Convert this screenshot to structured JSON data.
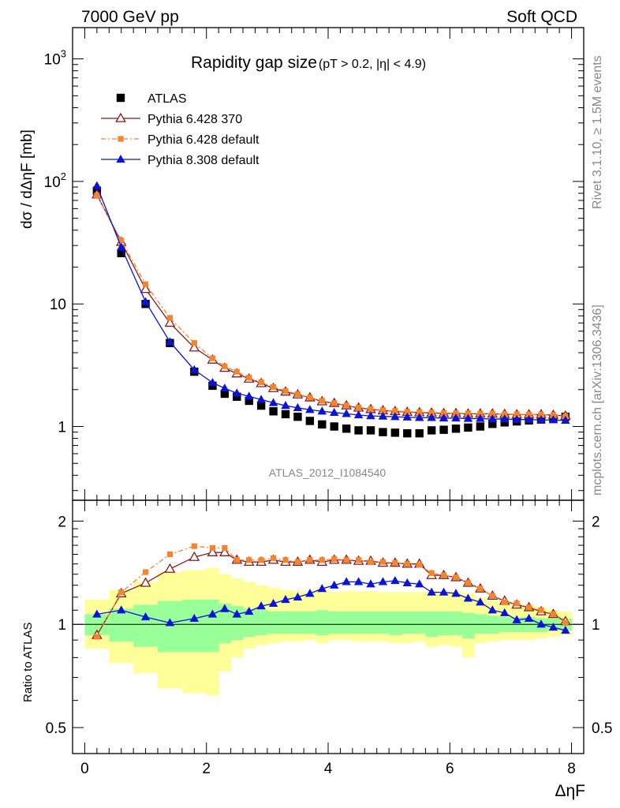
{
  "header": {
    "left": "7000 GeV pp",
    "right": "Soft QCD"
  },
  "side": {
    "rivet": "Rivet 3.1.10, ≥ 1.5M events",
    "mcplots": "mcplots.cern.ch [arXiv:1306.3436]"
  },
  "chart_data": [
    {
      "type": "scatter",
      "title_main": "Rapidity gap size",
      "title_sub": "(pT > 0.2, |η| < 4.9)",
      "ylabel": "dσ / dΔηF [mb]",
      "watermark": "ATLAS_2012_I1084540",
      "yscale": "log",
      "ylim": [
        0.25,
        1800
      ],
      "xlim": [
        -0.2,
        8.2
      ],
      "ytick_labels": [
        "1",
        "10",
        "10²",
        "10³"
      ],
      "series": [
        {
          "name": "ATLAS",
          "color": "#000000",
          "marker": "square-filled",
          "x": [
            0.2,
            0.6,
            1.0,
            1.4,
            1.8,
            2.1,
            2.3,
            2.5,
            2.7,
            2.9,
            3.1,
            3.3,
            3.5,
            3.7,
            3.9,
            4.1,
            4.3,
            4.5,
            4.7,
            4.9,
            5.1,
            5.3,
            5.5,
            5.7,
            5.9,
            6.1,
            6.3,
            6.5,
            6.7,
            6.9,
            7.1,
            7.3,
            7.5,
            7.7,
            7.9
          ],
          "y": [
            84,
            26,
            10,
            4.8,
            2.8,
            2.15,
            1.85,
            1.75,
            1.62,
            1.48,
            1.33,
            1.26,
            1.2,
            1.11,
            1.04,
            1.0,
            0.96,
            0.93,
            0.93,
            0.9,
            0.89,
            0.88,
            0.88,
            0.93,
            0.94,
            0.96,
            0.98,
            1.0,
            1.05,
            1.08,
            1.1,
            1.12,
            1.14,
            1.16,
            1.2
          ]
        },
        {
          "name": "Pythia 6.428 370",
          "color": "#8b1a1a",
          "marker": "triangle-open",
          "x": [
            0.2,
            0.6,
            1.0,
            1.4,
            1.8,
            2.1,
            2.3,
            2.5,
            2.7,
            2.9,
            3.1,
            3.3,
            3.5,
            3.7,
            3.9,
            4.1,
            4.3,
            4.5,
            4.7,
            4.9,
            5.1,
            5.3,
            5.5,
            5.7,
            5.9,
            6.1,
            6.3,
            6.5,
            6.7,
            6.9,
            7.1,
            7.3,
            7.5,
            7.7,
            7.9
          ],
          "y": [
            78,
            32,
            13.2,
            7.0,
            4.4,
            3.5,
            3.0,
            2.7,
            2.45,
            2.25,
            2.05,
            1.92,
            1.82,
            1.72,
            1.6,
            1.55,
            1.48,
            1.42,
            1.38,
            1.35,
            1.33,
            1.31,
            1.3,
            1.29,
            1.28,
            1.28,
            1.27,
            1.27,
            1.27,
            1.26,
            1.25,
            1.25,
            1.25,
            1.24,
            1.22
          ]
        },
        {
          "name": "Pythia 6.428 default",
          "color": "#f5842e",
          "marker": "square-filled",
          "dashed": true,
          "x": [
            0.2,
            0.6,
            1.0,
            1.4,
            1.8,
            2.1,
            2.3,
            2.5,
            2.7,
            2.9,
            3.1,
            3.3,
            3.5,
            3.7,
            3.9,
            4.1,
            4.3,
            4.5,
            4.7,
            4.9,
            5.1,
            5.3,
            5.5,
            5.7,
            5.9,
            6.1,
            6.3,
            6.5,
            6.7,
            6.9,
            7.1,
            7.3,
            7.5,
            7.7,
            7.9
          ],
          "y": [
            77,
            33,
            14.5,
            7.7,
            4.8,
            3.6,
            3.1,
            2.8,
            2.5,
            2.3,
            2.1,
            1.95,
            1.84,
            1.72,
            1.62,
            1.55,
            1.48,
            1.43,
            1.39,
            1.36,
            1.34,
            1.32,
            1.31,
            1.3,
            1.29,
            1.28,
            1.28,
            1.27,
            1.27,
            1.26,
            1.26,
            1.25,
            1.25,
            1.24,
            1.21
          ]
        },
        {
          "name": "Pythia 8.308 default",
          "color": "#0a14d6",
          "marker": "triangle-filled",
          "x": [
            0.2,
            0.6,
            1.0,
            1.4,
            1.8,
            2.1,
            2.3,
            2.5,
            2.7,
            2.9,
            3.1,
            3.3,
            3.5,
            3.7,
            3.9,
            4.1,
            4.3,
            4.5,
            4.7,
            4.9,
            5.1,
            5.3,
            5.5,
            5.7,
            5.9,
            6.1,
            6.3,
            6.5,
            6.7,
            6.9,
            7.1,
            7.3,
            7.5,
            7.7,
            7.9
          ],
          "y": [
            92,
            29,
            10.4,
            4.9,
            2.9,
            2.28,
            2.05,
            1.87,
            1.76,
            1.66,
            1.56,
            1.48,
            1.42,
            1.37,
            1.33,
            1.3,
            1.27,
            1.24,
            1.22,
            1.21,
            1.2,
            1.19,
            1.18,
            1.18,
            1.17,
            1.17,
            1.16,
            1.16,
            1.15,
            1.15,
            1.14,
            1.14,
            1.13,
            1.13,
            1.12
          ]
        }
      ]
    },
    {
      "type": "line",
      "ylabel": "Ratio to ATLAS",
      "xlabel": "ΔηF",
      "yscale": "log",
      "ylim": [
        0.42,
        2.3
      ],
      "xlim": [
        -0.2,
        8.2
      ],
      "yticks": [
        0.5,
        1,
        2
      ],
      "ytick_labels": [
        "0.5",
        "1",
        "2"
      ],
      "xticks": [
        0,
        2,
        4,
        6,
        8
      ],
      "xtick_labels": [
        "0",
        "2",
        "4",
        "6",
        "8"
      ],
      "bands": {
        "edges": [
          0.0,
          0.4,
          0.8,
          1.2,
          1.6,
          2.0,
          2.2,
          2.4,
          2.6,
          2.8,
          3.0,
          3.2,
          3.4,
          3.6,
          3.8,
          4.0,
          4.2,
          4.4,
          4.6,
          4.8,
          5.0,
          5.2,
          5.4,
          5.6,
          5.8,
          6.0,
          6.2,
          6.4,
          6.6,
          6.8,
          7.0,
          7.2,
          7.4,
          7.6,
          7.8,
          8.0
        ],
        "outer_color": "#ffff99",
        "inner_color": "#99ff99",
        "outer_lo": [
          0.85,
          0.77,
          0.72,
          0.65,
          0.63,
          0.62,
          0.73,
          0.8,
          0.85,
          0.87,
          0.88,
          0.89,
          0.89,
          0.9,
          0.88,
          0.9,
          0.9,
          0.89,
          0.89,
          0.89,
          0.88,
          0.88,
          0.89,
          0.86,
          0.87,
          0.86,
          0.8,
          0.88,
          0.89,
          0.9,
          0.9,
          0.9,
          0.91,
          0.92,
          0.93
        ],
        "outer_hi": [
          1.18,
          1.26,
          1.33,
          1.42,
          1.44,
          1.46,
          1.4,
          1.36,
          1.33,
          1.3,
          1.28,
          1.26,
          1.25,
          1.24,
          1.28,
          1.24,
          1.25,
          1.25,
          1.25,
          1.24,
          1.24,
          1.24,
          1.24,
          1.25,
          1.24,
          1.25,
          1.23,
          1.2,
          1.17,
          1.15,
          1.14,
          1.14,
          1.12,
          1.1,
          1.09
        ],
        "inner_lo": [
          0.93,
          0.89,
          0.86,
          0.83,
          0.83,
          0.83,
          0.88,
          0.9,
          0.92,
          0.93,
          0.94,
          0.94,
          0.94,
          0.94,
          0.93,
          0.94,
          0.94,
          0.94,
          0.94,
          0.94,
          0.93,
          0.94,
          0.94,
          0.92,
          0.93,
          0.93,
          0.91,
          0.94,
          0.94,
          0.95,
          0.95,
          0.95,
          0.95,
          0.96,
          0.96
        ],
        "inner_hi": [
          1.07,
          1.11,
          1.14,
          1.17,
          1.18,
          1.18,
          1.15,
          1.13,
          1.11,
          1.1,
          1.09,
          1.09,
          1.09,
          1.09,
          1.1,
          1.09,
          1.09,
          1.09,
          1.09,
          1.09,
          1.09,
          1.09,
          1.09,
          1.09,
          1.09,
          1.09,
          1.08,
          1.07,
          1.06,
          1.05,
          1.05,
          1.05,
          1.04,
          1.04,
          1.04
        ]
      },
      "series": [
        {
          "name": "Pythia 6.428 370",
          "color": "#8b1a1a",
          "marker": "triangle-open",
          "x": [
            0.2,
            0.6,
            1.0,
            1.4,
            1.8,
            2.1,
            2.3,
            2.5,
            2.7,
            2.9,
            3.1,
            3.3,
            3.5,
            3.7,
            3.9,
            4.1,
            4.3,
            4.5,
            4.7,
            4.9,
            5.1,
            5.3,
            5.5,
            5.7,
            5.9,
            6.1,
            6.3,
            6.5,
            6.7,
            6.9,
            7.1,
            7.3,
            7.5,
            7.7,
            7.9
          ],
          "y": [
            0.93,
            1.23,
            1.32,
            1.45,
            1.57,
            1.62,
            1.62,
            1.54,
            1.52,
            1.52,
            1.54,
            1.52,
            1.52,
            1.54,
            1.52,
            1.54,
            1.54,
            1.53,
            1.53,
            1.51,
            1.51,
            1.5,
            1.5,
            1.39,
            1.39,
            1.37,
            1.32,
            1.27,
            1.21,
            1.17,
            1.14,
            1.12,
            1.09,
            1.07,
            1.02
          ]
        },
        {
          "name": "Pythia 6.428 default",
          "color": "#f5842e",
          "marker": "square-filled",
          "dashed": true,
          "x": [
            0.2,
            0.6,
            1.0,
            1.4,
            1.8,
            2.1,
            2.3,
            2.5,
            2.7,
            2.9,
            3.1,
            3.3,
            3.5,
            3.7,
            3.9,
            4.1,
            4.3,
            4.5,
            4.7,
            4.9,
            5.1,
            5.3,
            5.5,
            5.7,
            5.9,
            6.1,
            6.3,
            6.5,
            6.7,
            6.9,
            7.1,
            7.3,
            7.5,
            7.7,
            7.9
          ],
          "y": [
            0.92,
            1.24,
            1.42,
            1.6,
            1.69,
            1.67,
            1.67,
            1.54,
            1.54,
            1.54,
            1.56,
            1.54,
            1.52,
            1.54,
            1.54,
            1.55,
            1.54,
            1.54,
            1.52,
            1.52,
            1.51,
            1.5,
            1.49,
            1.41,
            1.39,
            1.37,
            1.32,
            1.27,
            1.21,
            1.16,
            1.15,
            1.12,
            1.1,
            1.07,
            1.01
          ]
        },
        {
          "name": "Pythia 8.308 default",
          "color": "#0a14d6",
          "marker": "triangle-filled",
          "x": [
            0.2,
            0.6,
            1.0,
            1.4,
            1.8,
            2.1,
            2.3,
            2.5,
            2.7,
            2.9,
            3.1,
            3.3,
            3.5,
            3.7,
            3.9,
            4.1,
            4.3,
            4.5,
            4.7,
            4.9,
            5.1,
            5.3,
            5.5,
            5.7,
            5.9,
            6.1,
            6.3,
            6.5,
            6.7,
            6.9,
            7.1,
            7.3,
            7.5,
            7.7,
            7.9
          ],
          "y": [
            1.07,
            1.1,
            1.05,
            1.01,
            1.04,
            1.07,
            1.11,
            1.07,
            1.09,
            1.13,
            1.15,
            1.18,
            1.2,
            1.23,
            1.27,
            1.3,
            1.33,
            1.33,
            1.31,
            1.33,
            1.34,
            1.32,
            1.31,
            1.24,
            1.24,
            1.23,
            1.19,
            1.16,
            1.1,
            1.08,
            1.03,
            1.04,
            1.0,
            0.98,
            0.96
          ]
        }
      ]
    }
  ]
}
